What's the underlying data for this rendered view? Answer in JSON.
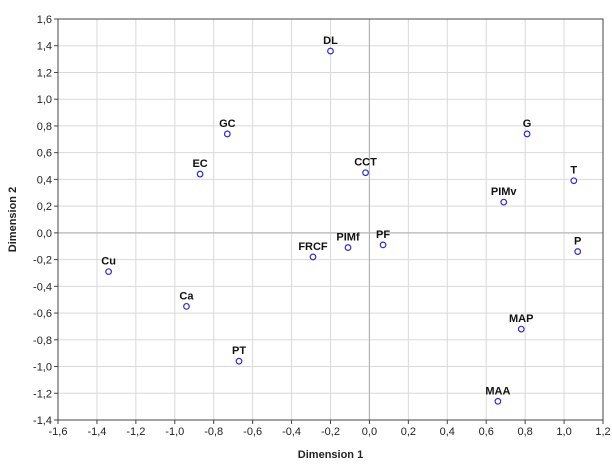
{
  "chart_data": {
    "type": "scatter",
    "title": "",
    "xlabel": "Dimension 1",
    "ylabel": "Dimension 2",
    "xlim": [
      -1.6,
      1.2
    ],
    "ylim": [
      -1.4,
      1.6
    ],
    "x_ticks": [
      -1.6,
      -1.4,
      -1.2,
      -1.0,
      -0.8,
      -0.6,
      -0.4,
      -0.2,
      0.0,
      0.2,
      0.4,
      0.6,
      0.8,
      1.0,
      1.2
    ],
    "x_tick_labels": [
      "-1,6",
      "-1,4",
      "-1,2",
      "-1,0",
      "-0,8",
      "-0,6",
      "-0,4",
      "-0,2",
      "0,0",
      "0,2",
      "0,4",
      "0,6",
      "0,8",
      "1,0",
      "1,2"
    ],
    "y_ticks": [
      1.6,
      1.4,
      1.2,
      1.0,
      0.8,
      0.6,
      0.4,
      0.2,
      0.0,
      -0.2,
      -0.4,
      -0.6,
      -0.8,
      -1.0,
      -1.2,
      -1.4
    ],
    "y_tick_labels": [
      "1,6",
      "1,4",
      "1,2",
      "1,0",
      "0,8",
      "0,6",
      "0,4",
      "0,2",
      "0,0",
      "-0,2",
      "-0,4",
      "-0,6",
      "-0,8",
      "-1,0",
      "-1,2",
      "-1,4"
    ],
    "grid": true,
    "reference_lines": {
      "x": 0.0,
      "y": 0.0
    },
    "marker_color": "#2b2bd6",
    "points": [
      {
        "label": "DL",
        "x": -0.2,
        "y": 1.36
      },
      {
        "label": "GC",
        "x": -0.73,
        "y": 0.74
      },
      {
        "label": "EC",
        "x": -0.87,
        "y": 0.44
      },
      {
        "label": "CCT",
        "x": -0.02,
        "y": 0.45
      },
      {
        "label": "G",
        "x": 0.81,
        "y": 0.74
      },
      {
        "label": "T",
        "x": 1.05,
        "y": 0.39
      },
      {
        "label": "PIMv",
        "x": 0.69,
        "y": 0.23
      },
      {
        "label": "P",
        "x": 1.07,
        "y": -0.14
      },
      {
        "label": "PF",
        "x": 0.07,
        "y": -0.09
      },
      {
        "label": "PIMf",
        "x": -0.11,
        "y": -0.11
      },
      {
        "label": "FRCF",
        "x": -0.29,
        "y": -0.18
      },
      {
        "label": "Cu",
        "x": -1.34,
        "y": -0.29
      },
      {
        "label": "Ca",
        "x": -0.94,
        "y": -0.55
      },
      {
        "label": "MAP",
        "x": 0.78,
        "y": -0.72
      },
      {
        "label": "PT",
        "x": -0.67,
        "y": -0.96
      },
      {
        "label": "MAA",
        "x": 0.66,
        "y": -1.26
      }
    ]
  }
}
